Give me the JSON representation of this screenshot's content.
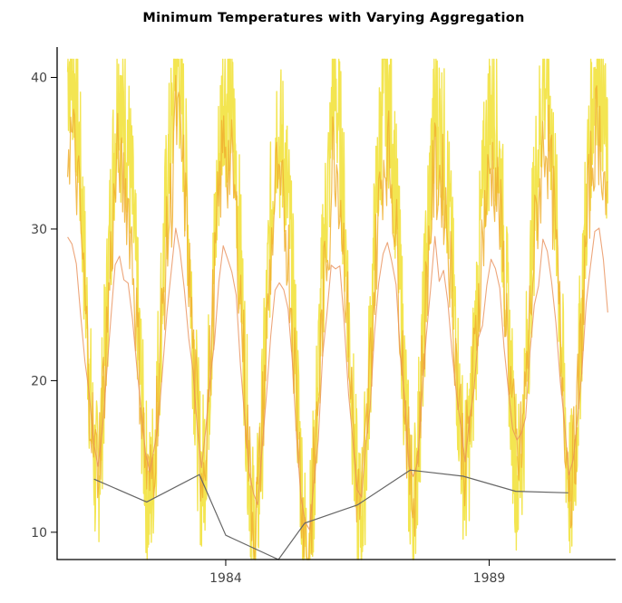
{
  "chart_data": {
    "type": "line",
    "title": "Minimum Temperatures with Varying Aggregation",
    "xlabel": "",
    "ylabel": "",
    "xlim": [
      1980.8,
      1991.4
    ],
    "ylim": [
      8.2,
      42.0
    ],
    "x_ticks": [
      1984,
      1989
    ],
    "x_tick_labels": [
      "1984",
      "1989"
    ],
    "y_ticks": [
      10,
      20,
      30,
      40
    ],
    "y_tick_labels": [
      "10",
      "20",
      "30",
      "40"
    ],
    "grid": false,
    "legend": "none",
    "series": [
      {
        "aggregation": "daily",
        "color": "#f2e23e",
        "x_start": 1981.0,
        "x_end": 1991.25,
        "summer_peaks": [
          41.0,
          37.5,
          41.0,
          38.5,
          35.5,
          39.0,
          38.5,
          37.0,
          38.0,
          40.0,
          41.0
        ],
        "winter_troughs": [
          13.5,
          12.0,
          13.8,
          9.8,
          8.2,
          10.6,
          11.8,
          14.0,
          13.6,
          12.6,
          12.6
        ]
      },
      {
        "aggregation": "weekly",
        "color": "#f0b030",
        "x_start": 1981.0,
        "x_end": 1991.25,
        "summer_peaks": [
          36.0,
          33.0,
          37.0,
          34.5,
          31.5,
          35.0,
          35.0,
          33.5,
          34.0,
          36.0,
          36.5
        ],
        "winter_troughs": [
          14.5,
          12.8,
          14.5,
          10.8,
          9.0,
          11.5,
          12.5,
          15.0,
          14.5,
          13.5,
          13.5
        ]
      },
      {
        "aggregation": "monthly",
        "color": "#e8905a",
        "x_start": 1981.0,
        "x_end": 1991.25,
        "summer_peaks": [
          29.0,
          27.0,
          30.0,
          27.5,
          26.0,
          28.5,
          29.5,
          27.0,
          28.0,
          29.0,
          30.0
        ],
        "winter_troughs": [
          15.0,
          13.5,
          15.0,
          11.5,
          9.5,
          12.0,
          13.0,
          15.5,
          15.0,
          14.0,
          14.0
        ]
      },
      {
        "aggregation": "annual minimum",
        "color": "#666666",
        "x": [
          1981.5,
          1982.5,
          1983.5,
          1984.0,
          1985.0,
          1985.5,
          1986.5,
          1987.5,
          1988.5,
          1989.5,
          1990.5
        ],
        "y": [
          13.5,
          12.0,
          13.8,
          9.8,
          8.2,
          10.6,
          11.8,
          14.1,
          13.7,
          12.7,
          12.6
        ]
      }
    ]
  }
}
